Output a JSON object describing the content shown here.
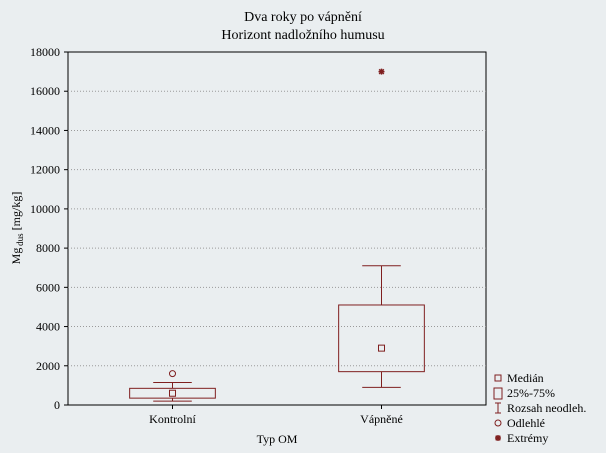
{
  "colors": {
    "background": "#eaeef0",
    "box": "#7f1f1f",
    "grid": "#9a9a9a"
  },
  "chart_data": {
    "type": "box",
    "title": "Dva roky po vápnění",
    "subtitle": "Horizont nadložního humusu",
    "xlabel": "Typ OM",
    "ylabel_main": "Mg",
    "ylabel_sub": " dus",
    "ylabel_suffix": " [mg/kg]",
    "ylim": [
      0,
      18000
    ],
    "yticks": [
      0,
      2000,
      4000,
      6000,
      8000,
      10000,
      12000,
      14000,
      16000,
      18000
    ],
    "grid": true,
    "legend_position": "bottom-right",
    "categories": [
      "Kontrolní",
      "Vápněné"
    ],
    "boxes": [
      {
        "category": "Kontrolní",
        "median": 600,
        "q1": 350,
        "q3": 850,
        "whisker_low": 200,
        "whisker_high": 1150,
        "outliers": [
          1600
        ],
        "extremes": []
      },
      {
        "category": "Vápněné",
        "median": 2900,
        "q1": 1700,
        "q3": 5100,
        "whisker_low": 900,
        "whisker_high": 7100,
        "outliers": [],
        "extremes": [
          17000
        ]
      }
    ],
    "legend": [
      "Medián",
      "25%-75%",
      "Rozsah neodleh.",
      "Odlehlé",
      "Extrémy"
    ]
  }
}
